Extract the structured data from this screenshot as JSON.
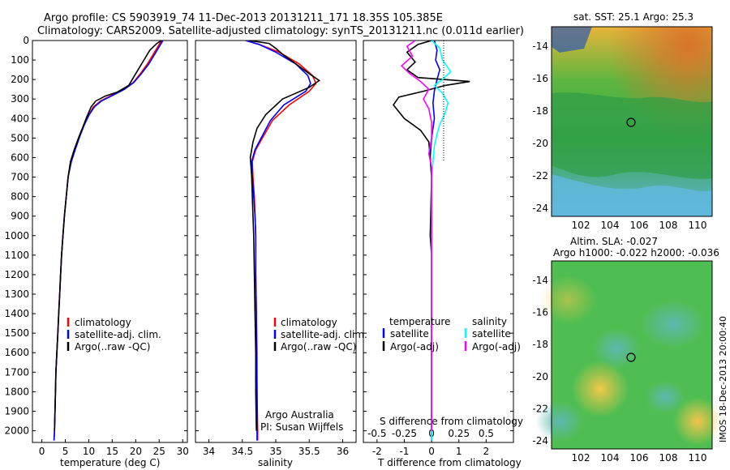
{
  "title_line1": "Argo profile: CS 5903919_74 11-Dec-2013 20131211_171 18.35S 105.385E",
  "title_line2": "Climatology: CARS2009. Satellite-adjusted climatology: synTS_20131211.nc (0.011d earlier)",
  "side_label": "IMOS 18-Dec-2013 20:00:40",
  "colors": {
    "climatology": "#ff0000",
    "satellite": "#0000ff",
    "argo": "#000000",
    "salinity_sat": "#00ffff",
    "salinity_argo": "#ff00ff"
  },
  "chart_data": [
    {
      "type": "line",
      "xlabel": "temperature (deg C)",
      "xlim": [
        -2,
        31
      ],
      "xticks": [
        0,
        5,
        10,
        15,
        20,
        25,
        30
      ],
      "ylim": [
        2060,
        0
      ],
      "yticks": [
        0,
        100,
        200,
        300,
        400,
        500,
        600,
        700,
        800,
        900,
        1000,
        1100,
        1200,
        1300,
        1400,
        1500,
        1600,
        1700,
        1800,
        1900,
        2000
      ],
      "legend": [
        "climatology",
        "satellite-adj. clim.",
        "Argo(..raw -QC)"
      ],
      "series": [
        {
          "name": "climatology",
          "color": "#ff0000",
          "points": [
            [
              25.5,
              0
            ],
            [
              25.0,
              20
            ],
            [
              24.0,
              60
            ],
            [
              22.5,
              120
            ],
            [
              21.0,
              170
            ],
            [
              19.5,
              215
            ],
            [
              17.5,
              250
            ],
            [
              15.0,
              280
            ],
            [
              12.5,
              310
            ],
            [
              11.0,
              340
            ],
            [
              10.0,
              380
            ],
            [
              9.0,
              430
            ],
            [
              8.0,
              490
            ],
            [
              7.0,
              560
            ],
            [
              6.2,
              620
            ],
            [
              5.6,
              700
            ],
            [
              5.2,
              800
            ],
            [
              4.8,
              900
            ],
            [
              4.5,
              1000
            ],
            [
              4.2,
              1100
            ],
            [
              4.0,
              1200
            ],
            [
              3.8,
              1300
            ],
            [
              3.6,
              1400
            ],
            [
              3.4,
              1500
            ],
            [
              3.2,
              1600
            ],
            [
              3.0,
              1700
            ],
            [
              2.9,
              1800
            ],
            [
              2.8,
              1900
            ],
            [
              2.7,
              2000
            ],
            [
              2.6,
              2050
            ]
          ]
        },
        {
          "name": "satellite-adj. clim.",
          "color": "#0000ff",
          "points": [
            [
              25.8,
              0
            ],
            [
              25.3,
              20
            ],
            [
              24.3,
              60
            ],
            [
              22.8,
              120
            ],
            [
              21.2,
              170
            ],
            [
              19.6,
              215
            ],
            [
              17.6,
              250
            ],
            [
              15.2,
              280
            ],
            [
              12.7,
              310
            ],
            [
              11.2,
              340
            ],
            [
              10.1,
              380
            ],
            [
              9.1,
              430
            ],
            [
              8.1,
              490
            ],
            [
              7.1,
              560
            ],
            [
              6.3,
              620
            ],
            [
              5.6,
              700
            ],
            [
              5.2,
              800
            ],
            [
              4.8,
              900
            ],
            [
              4.5,
              1000
            ],
            [
              4.2,
              1100
            ],
            [
              4.0,
              1200
            ],
            [
              3.8,
              1300
            ],
            [
              3.6,
              1400
            ],
            [
              3.4,
              1500
            ],
            [
              3.2,
              1600
            ],
            [
              3.0,
              1700
            ],
            [
              2.9,
              1800
            ],
            [
              2.8,
              1900
            ],
            [
              2.7,
              2000
            ],
            [
              2.6,
              2050
            ]
          ]
        },
        {
          "name": "Argo(..raw -QC)",
          "color": "#000000",
          "points": [
            [
              25.5,
              0
            ],
            [
              24.5,
              15
            ],
            [
              23.0,
              50
            ],
            [
              21.5,
              110
            ],
            [
              20.0,
              170
            ],
            [
              18.5,
              230
            ],
            [
              16.0,
              265
            ],
            [
              13.5,
              285
            ],
            [
              11.5,
              310
            ],
            [
              10.5,
              340
            ],
            [
              9.6,
              390
            ],
            [
              8.8,
              440
            ],
            [
              7.8,
              500
            ],
            [
              6.9,
              560
            ],
            [
              6.1,
              620
            ],
            [
              5.6,
              700
            ],
            [
              5.2,
              800
            ],
            [
              4.8,
              900
            ],
            [
              4.5,
              1000
            ],
            [
              4.2,
              1100
            ],
            [
              4.0,
              1200
            ],
            [
              3.8,
              1300
            ],
            [
              3.6,
              1400
            ],
            [
              3.4,
              1500
            ],
            [
              3.2,
              1600
            ],
            [
              3.0,
              1700
            ],
            [
              2.9,
              1800
            ],
            [
              2.8,
              1900
            ],
            [
              2.7,
              2000
            ]
          ]
        }
      ]
    },
    {
      "type": "line",
      "xlabel": "salinity",
      "xlim": [
        33.8,
        36.2
      ],
      "xticks": [
        34,
        34.5,
        35,
        35.5,
        36
      ],
      "ylim": [
        2060,
        0
      ],
      "legend": [
        "climatology",
        "satellite-adj. clim.",
        "Argo(..raw -QC)"
      ],
      "annotations": [
        "Argo Australia",
        "PI: Susan Wijffels"
      ],
      "series": [
        {
          "name": "climatology",
          "color": "#ff0000",
          "points": [
            [
              34.55,
              0
            ],
            [
              34.75,
              20
            ],
            [
              35.05,
              60
            ],
            [
              35.35,
              120
            ],
            [
              35.55,
              180
            ],
            [
              35.6,
              220
            ],
            [
              35.5,
              260
            ],
            [
              35.2,
              330
            ],
            [
              34.95,
              410
            ],
            [
              34.8,
              500
            ],
            [
              34.7,
              560
            ],
            [
              34.65,
              620
            ],
            [
              34.66,
              700
            ],
            [
              34.68,
              800
            ],
            [
              34.69,
              900
            ],
            [
              34.7,
              1000
            ],
            [
              34.7,
              1200
            ],
            [
              34.71,
              1400
            ],
            [
              34.72,
              1600
            ],
            [
              34.72,
              1800
            ],
            [
              34.73,
              2000
            ],
            [
              34.73,
              2050
            ]
          ]
        },
        {
          "name": "satellite-adj. clim.",
          "color": "#0000ff",
          "points": [
            [
              34.55,
              0
            ],
            [
              34.75,
              20
            ],
            [
              35.0,
              60
            ],
            [
              35.3,
              120
            ],
            [
              35.48,
              180
            ],
            [
              35.52,
              220
            ],
            [
              35.45,
              260
            ],
            [
              35.12,
              330
            ],
            [
              34.92,
              410
            ],
            [
              34.78,
              500
            ],
            [
              34.69,
              560
            ],
            [
              34.64,
              620
            ],
            [
              34.65,
              700
            ],
            [
              34.67,
              800
            ],
            [
              34.69,
              900
            ],
            [
              34.7,
              1000
            ],
            [
              34.7,
              1200
            ],
            [
              34.71,
              1400
            ],
            [
              34.71,
              1600
            ],
            [
              34.72,
              1800
            ],
            [
              34.72,
              2000
            ],
            [
              34.72,
              2050
            ]
          ]
        },
        {
          "name": "Argo(..raw -QC)",
          "color": "#000000",
          "points": [
            [
              34.6,
              0
            ],
            [
              34.9,
              15
            ],
            [
              35.0,
              40
            ],
            [
              35.1,
              70
            ],
            [
              35.3,
              120
            ],
            [
              35.5,
              170
            ],
            [
              35.65,
              205
            ],
            [
              35.5,
              240
            ],
            [
              35.1,
              300
            ],
            [
              34.85,
              380
            ],
            [
              34.72,
              450
            ],
            [
              34.66,
              520
            ],
            [
              34.62,
              600
            ],
            [
              34.63,
              650
            ],
            [
              34.64,
              700
            ],
            [
              34.65,
              800
            ],
            [
              34.66,
              900
            ],
            [
              34.67,
              1000
            ],
            [
              34.68,
              1200
            ],
            [
              34.69,
              1400
            ],
            [
              34.7,
              1600
            ],
            [
              34.7,
              1800
            ],
            [
              34.71,
              2000
            ]
          ]
        }
      ]
    },
    {
      "type": "line",
      "xlabel": "T difference from climatology",
      "xlabel_top": "S difference from climatology",
      "xlim": [
        -2.5,
        3
      ],
      "xticks": [
        -2,
        -1,
        0,
        1,
        2
      ],
      "xtick_labels_top": [
        "-0.5",
        "-0.25",
        "0",
        "0.25",
        "0.5"
      ],
      "ylim": [
        2060,
        0
      ],
      "legend_left_title": "temperature",
      "legend_right_title": "salinity",
      "legend_left": [
        "satellite",
        "Argo(-adj)"
      ],
      "legend_right": [
        "satellite",
        "Argo(-adj)"
      ],
      "series": [
        {
          "name": "temperature satellite",
          "color": "#0000ff",
          "points": [
            [
              0.1,
              0
            ],
            [
              0.2,
              50
            ],
            [
              0.15,
              100
            ],
            [
              0.3,
              150
            ],
            [
              0.2,
              200
            ],
            [
              0.1,
              260
            ],
            [
              0.05,
              320
            ],
            [
              0.1,
              400
            ],
            [
              0.0,
              500
            ],
            [
              -0.05,
              600
            ],
            [
              0.0,
              700
            ],
            [
              0.0,
              1000
            ],
            [
              0.0,
              1500
            ],
            [
              0.0,
              2000
            ],
            [
              0.0,
              2050
            ]
          ]
        },
        {
          "name": "temperature Argo(-adj)",
          "color": "#000000",
          "points": [
            [
              0.0,
              0
            ],
            [
              -0.5,
              20
            ],
            [
              -0.9,
              60
            ],
            [
              -0.6,
              110
            ],
            [
              -0.9,
              150
            ],
            [
              -0.5,
              190
            ],
            [
              0.5,
              200
            ],
            [
              1.4,
              210
            ],
            [
              0.5,
              230
            ],
            [
              -0.3,
              260
            ],
            [
              -1.2,
              290
            ],
            [
              -1.4,
              330
            ],
            [
              -1.0,
              400
            ],
            [
              -0.4,
              460
            ],
            [
              -0.1,
              520
            ],
            [
              -0.05,
              600
            ],
            [
              0.0,
              700
            ],
            [
              -0.05,
              1000
            ],
            [
              0.0,
              1100
            ],
            [
              0.0,
              1500
            ],
            [
              0.0,
              2000
            ]
          ]
        },
        {
          "name": "salinity satellite",
          "color": "#00ffff",
          "points": [
            [
              0.0,
              0
            ],
            [
              0.3,
              40
            ],
            [
              0.4,
              100
            ],
            [
              0.7,
              160
            ],
            [
              0.4,
              200
            ],
            [
              0.1,
              230
            ],
            [
              0.4,
              270
            ],
            [
              0.6,
              320
            ],
            [
              0.5,
              370
            ],
            [
              0.3,
              430
            ],
            [
              0.2,
              480
            ],
            [
              0.1,
              540
            ],
            [
              0.05,
              620
            ],
            [
              0.0,
              700
            ],
            [
              0.0,
              1000
            ],
            [
              0.0,
              1500
            ],
            [
              0.0,
              2000
            ],
            [
              0.0,
              2050
            ]
          ]
        },
        {
          "name": "salinity Argo(-adj)",
          "color": "#ff00ff",
          "points": [
            [
              -0.6,
              0
            ],
            [
              -0.9,
              30
            ],
            [
              -0.7,
              80
            ],
            [
              -1.1,
              130
            ],
            [
              -0.8,
              170
            ],
            [
              -0.4,
              210
            ],
            [
              -0.1,
              250
            ],
            [
              -0.3,
              300
            ],
            [
              -0.1,
              350
            ],
            [
              0.0,
              420
            ],
            [
              0.0,
              500
            ],
            [
              -0.1,
              580
            ],
            [
              0.0,
              650
            ],
            [
              0.0,
              800
            ],
            [
              0.0,
              1000
            ],
            [
              0.0,
              1500
            ],
            [
              0.0,
              2000
            ]
          ]
        }
      ]
    },
    {
      "type": "heatmap",
      "title": "sat. SST: 25.1  Argo: 25.3",
      "xticks": [
        102,
        104,
        106,
        108,
        110
      ],
      "yticks": [
        -14,
        -16,
        -18,
        -20,
        -22,
        -24
      ],
      "xlim": [
        100,
        111
      ],
      "ylim": [
        -24.5,
        -12.8
      ],
      "marker": [
        105.385,
        -18.35
      ]
    },
    {
      "type": "heatmap",
      "title": "Altim. SLA: -0.027",
      "subtitle": "Argo h1000: -0.022  h2000: -0.036",
      "xticks": [
        102,
        104,
        106,
        108,
        110
      ],
      "yticks": [
        -14,
        -16,
        -18,
        -20,
        -22,
        -24
      ],
      "xlim": [
        100,
        111
      ],
      "ylim": [
        -24.5,
        -12.8
      ],
      "marker": [
        105.385,
        -18.35
      ]
    }
  ]
}
